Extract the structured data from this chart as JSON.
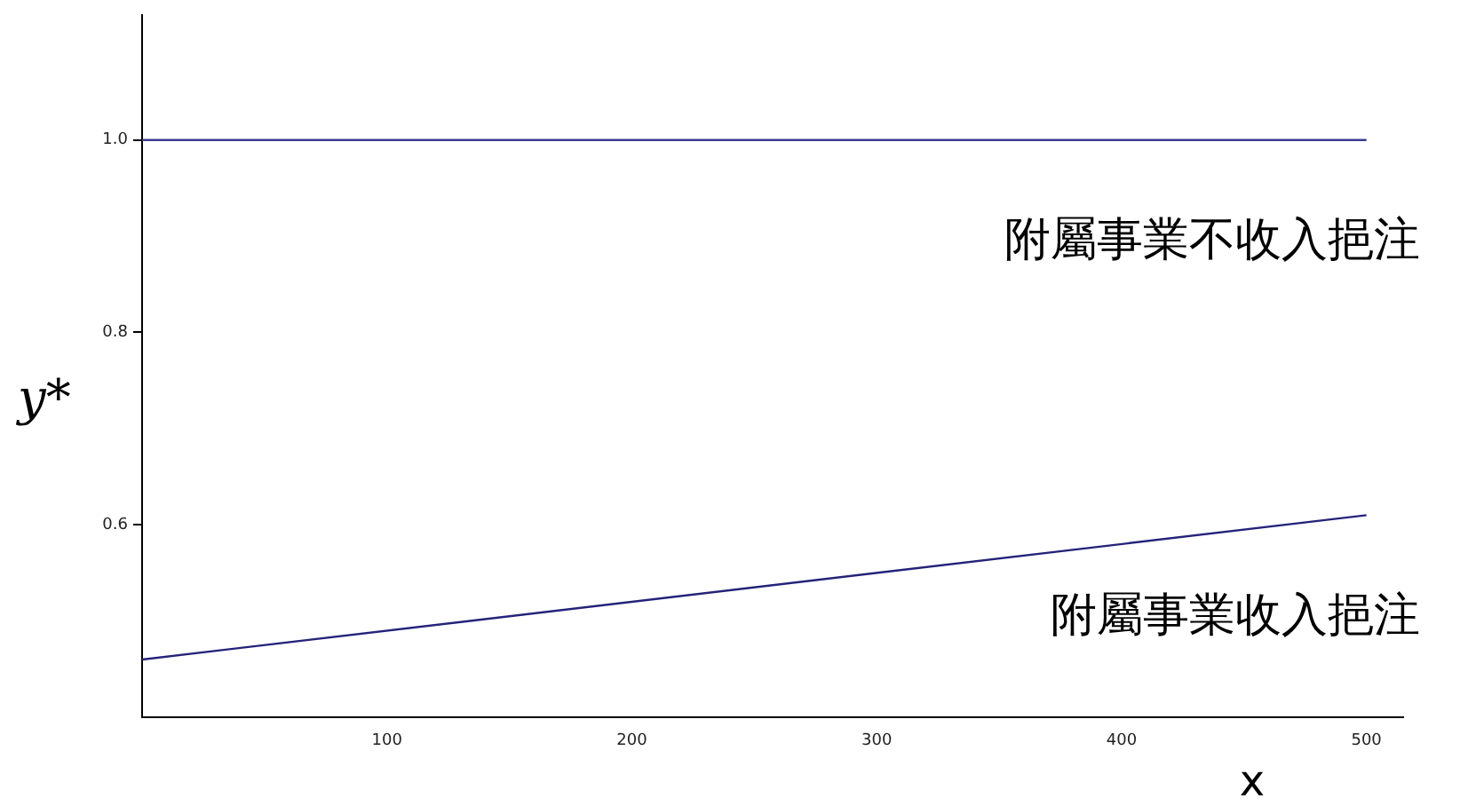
{
  "chart_data": {
    "type": "line",
    "xlabel": "x",
    "ylabel": "y*",
    "x": [
      0,
      500
    ],
    "series": [
      {
        "name": "附屬事業不收入挹注",
        "color": "#3b3b8f",
        "values": [
          1.0,
          1.0
        ]
      },
      {
        "name": "附屬事業收入挹注",
        "color": "#23237a",
        "values": [
          0.46,
          0.61
        ]
      }
    ],
    "xlim": [
      0,
      515
    ],
    "ylim": [
      0.4,
      1.13
    ],
    "xticks": [
      100,
      200,
      300,
      400,
      500
    ],
    "yticks": [
      {
        "value": 0.6,
        "label": "0.6"
      },
      {
        "value": 0.8,
        "label": "0.8"
      },
      {
        "value": 1.0,
        "label": "1.0"
      }
    ],
    "grid": false,
    "legend": false,
    "marker": "none",
    "line_style": "solid"
  }
}
